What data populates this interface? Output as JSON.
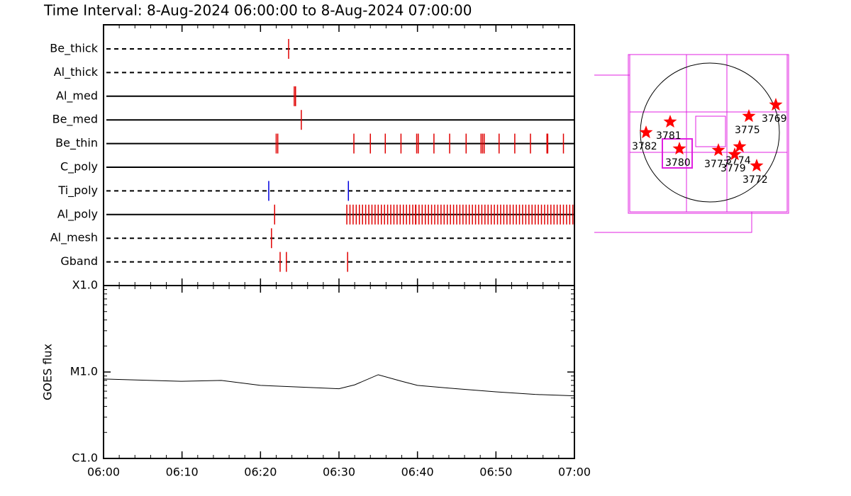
{
  "chart_data": [
    {
      "type": "timeline",
      "title": "Time Interval:  8-Aug-2024 06:00:00 to  8-Aug-2024 07:00:00",
      "xlim": [
        "06:00",
        "07:00"
      ],
      "rows": [
        {
          "name": "Be_thick",
          "style": "dashed",
          "color": "#e00000",
          "events": [
            "06:23:35"
          ]
        },
        {
          "name": "Al_thick",
          "style": "dashed",
          "color": "#e00000",
          "events": []
        },
        {
          "name": "Al_med",
          "style": "solid",
          "color": "#e00000",
          "events": [
            "06:24:18",
            "06:24:28"
          ]
        },
        {
          "name": "Be_med",
          "style": "solid",
          "color": "#e00000",
          "events": [
            "06:25:12"
          ]
        },
        {
          "name": "Be_thin",
          "style": "solid",
          "color": "#e00000",
          "events": [
            "06:22:00",
            "06:22:12",
            "06:31:54",
            "06:34:00",
            "06:35:54",
            "06:37:54",
            "06:39:54",
            "06:40:06",
            "06:42:06",
            "06:44:06",
            "06:46:12",
            "06:48:06",
            "06:48:18",
            "06:48:30",
            "06:50:24",
            "06:52:24",
            "06:54:24",
            "06:56:30",
            "06:56:36",
            "06:58:36"
          ]
        },
        {
          "name": "C_poly",
          "style": "solid",
          "color": "#e00000",
          "events": []
        },
        {
          "name": "Ti_poly",
          "style": "dashed",
          "color": "#0000e0",
          "events": [
            "06:21:03",
            "06:31:12"
          ]
        },
        {
          "name": "Al_poly",
          "style": "solid",
          "color": "#e00000",
          "events": [
            "06:21:48",
            "06:39:45",
            "06:31:00",
            "06:31:24",
            "06:31:48",
            "06:32:12",
            "06:32:36",
            "06:33:00",
            "06:33:24",
            "06:33:48",
            "06:34:12",
            "06:34:36",
            "06:35:00",
            "06:35:24",
            "06:35:48",
            "06:36:12",
            "06:36:36",
            "06:37:00",
            "06:37:24",
            "06:37:48",
            "06:38:12",
            "06:38:36",
            "06:39:00",
            "06:39:24",
            "06:39:48",
            "06:40:12",
            "06:40:36",
            "06:41:00",
            "06:41:24",
            "06:41:48",
            "06:42:12",
            "06:42:36",
            "06:43:00",
            "06:43:24",
            "06:43:48",
            "06:44:12",
            "06:44:36",
            "06:45:00",
            "06:45:24",
            "06:45:48",
            "06:46:12",
            "06:46:36",
            "06:47:00",
            "06:47:24",
            "06:47:48",
            "06:48:12",
            "06:48:36",
            "06:49:00",
            "06:49:24",
            "06:49:48",
            "06:50:12",
            "06:50:36",
            "06:51:00",
            "06:51:24",
            "06:51:48",
            "06:52:12",
            "06:52:36",
            "06:53:00",
            "06:53:24",
            "06:53:48",
            "06:54:12",
            "06:54:36",
            "06:55:00",
            "06:55:24",
            "06:55:48",
            "06:56:12",
            "06:56:36",
            "06:57:00",
            "06:57:24",
            "06:57:48",
            "06:58:12",
            "06:58:36",
            "06:59:00",
            "06:59:24",
            "06:59:48"
          ]
        },
        {
          "name": "Al_mesh",
          "style": "dashed",
          "color": "#e00000",
          "events": [
            "06:21:24"
          ]
        },
        {
          "name": "Gband",
          "style": "dashed",
          "color": "#e00000",
          "events": [
            "06:22:30",
            "06:23:18",
            "06:31:06"
          ]
        }
      ]
    },
    {
      "type": "line",
      "ylabel": "GOES flux",
      "log_scale": true,
      "color": "#000000",
      "x": [
        "06:00",
        "06:10",
        "06:15",
        "06:20",
        "06:25",
        "06:30",
        "06:32",
        "06:35",
        "06:38",
        "06:40",
        "06:45",
        "06:50",
        "06:55",
        "07:00"
      ],
      "values": [
        8.3e-06,
        7.8e-06,
        8e-06,
        7e-06,
        6.7e-06,
        6.4e-06,
        7.1e-06,
        9.3e-06,
        7.8e-06,
        7e-06,
        6.4e-06,
        5.9e-06,
        5.5e-06,
        5.3e-06
      ],
      "xlim": [
        "06:00",
        "07:00"
      ],
      "xticks": [
        "06:00",
        "06:10",
        "06:20",
        "06:30",
        "06:40",
        "06:50",
        "07:00"
      ],
      "ylim": [
        1e-06,
        0.0001
      ],
      "yticks": [
        {
          "value": 1e-06,
          "label": "C1.0"
        },
        {
          "value": 1e-05,
          "label": "M1.0"
        },
        {
          "value": 0.0001,
          "label": "X1.0"
        }
      ]
    },
    {
      "type": "scatter",
      "color": "#ff0000",
      "xlim": [
        -1100,
        1100
      ],
      "ylim": [
        -1100,
        1100
      ],
      "labels": [
        "3769",
        "3775",
        "3781",
        "3782",
        "3780",
        "3777",
        "3774",
        "3779",
        "3772"
      ],
      "x": [
        941,
        565,
        -535,
        -872,
        -406,
        139,
        436,
        367,
        674
      ],
      "y": [
        396,
        238,
        159,
        10,
        -218,
        -238,
        -188,
        -297,
        -456
      ]
    }
  ]
}
